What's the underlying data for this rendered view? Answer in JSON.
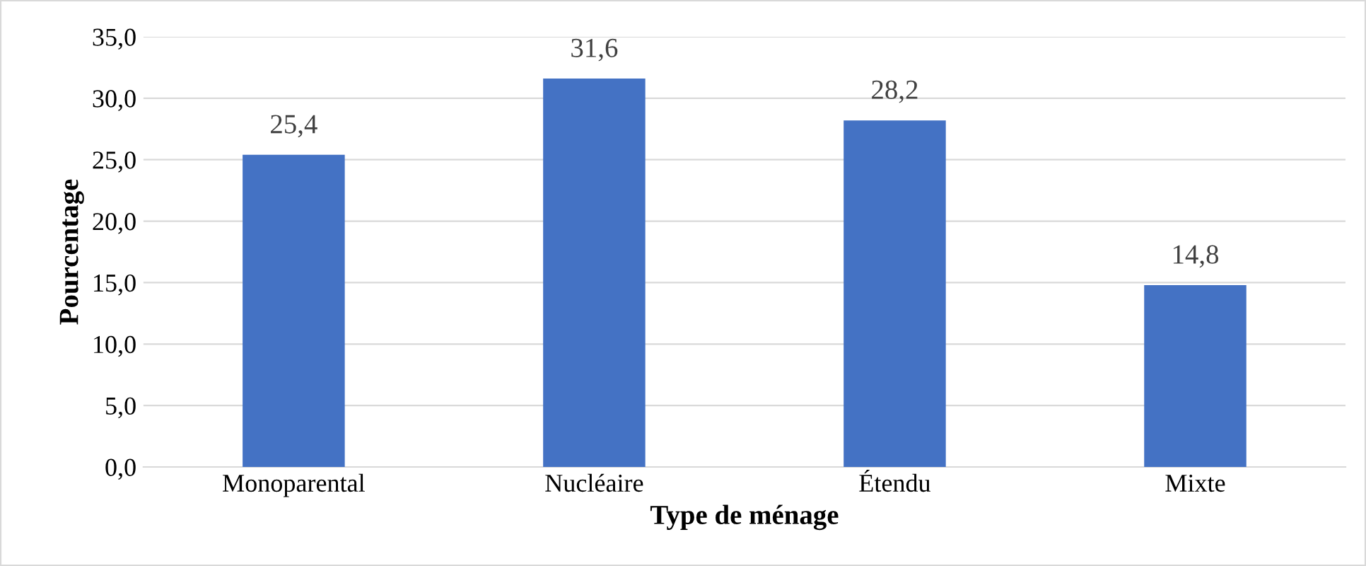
{
  "chart_data": {
    "type": "bar",
    "xlabel": "Type de ménage",
    "ylabel": "Pourcentage",
    "categories": [
      "Monoparental",
      "Nucléaire",
      "Étendu",
      "Mixte"
    ],
    "values": [
      25.4,
      31.6,
      28.2,
      14.8
    ],
    "value_labels": [
      "25,4",
      "31,6",
      "28,2",
      "14,8"
    ],
    "color": "#4472c4",
    "ylim": [
      0,
      35
    ],
    "yticks": [
      {
        "value": 0,
        "label": "0,0"
      },
      {
        "value": 5,
        "label": "5,0"
      },
      {
        "value": 10,
        "label": "10,0"
      },
      {
        "value": 15,
        "label": "15,0"
      },
      {
        "value": 20,
        "label": "20,0"
      },
      {
        "value": 25,
        "label": "25,0"
      },
      {
        "value": 30,
        "label": "30,0"
      },
      {
        "value": 35,
        "label": "35,0"
      }
    ],
    "grid": "y"
  }
}
